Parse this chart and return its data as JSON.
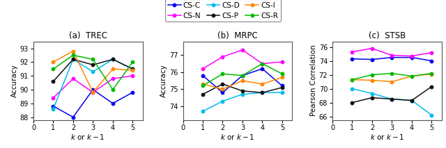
{
  "x": [
    1,
    2,
    3,
    4,
    5
  ],
  "series_order": [
    "CS-C",
    "CS-N",
    "CS-D",
    "CS-P",
    "CS-I",
    "CS-R"
  ],
  "series": {
    "CS-C": {
      "color": "#0000ee"
    },
    "CS-N": {
      "color": "#ff00ff"
    },
    "CS-D": {
      "color": "#00bbee"
    },
    "CS-P": {
      "color": "#111111"
    },
    "CS-I": {
      "color": "#ff8800"
    },
    "CS-R": {
      "color": "#00bb00"
    }
  },
  "trec": {
    "CS-C": [
      88.8,
      88.0,
      90.0,
      89.0,
      89.8
    ],
    "CS-N": [
      89.4,
      90.8,
      89.8,
      90.8,
      91.0
    ],
    "CS-D": [
      88.6,
      92.2,
      91.3,
      92.2,
      91.5
    ],
    "CS-P": [
      90.6,
      92.2,
      91.8,
      92.2,
      91.5
    ],
    "CS-I": [
      92.0,
      92.8,
      89.8,
      91.5,
      91.4
    ],
    "CS-R": [
      91.5,
      92.5,
      92.2,
      90.0,
      92.0
    ]
  },
  "trec_ylim": [
    87.8,
    93.5
  ],
  "trec_yticks": [
    88,
    89,
    90,
    91,
    92,
    93
  ],
  "mrpc": {
    "CS-C": [
      75.8,
      74.8,
      75.8,
      76.2,
      75.2
    ],
    "CS-N": [
      76.2,
      76.9,
      77.3,
      76.5,
      76.6
    ],
    "CS-D": [
      73.7,
      74.3,
      74.7,
      74.8,
      74.8
    ],
    "CS-P": [
      74.7,
      75.3,
      74.9,
      74.8,
      75.1
    ],
    "CS-I": [
      75.3,
      75.0,
      75.5,
      75.3,
      75.7
    ],
    "CS-R": [
      75.2,
      75.9,
      75.8,
      76.5,
      75.9
    ]
  },
  "mrpc_ylim": [
    73.2,
    77.8
  ],
  "mrpc_yticks": [
    74,
    75,
    76,
    77
  ],
  "stsb": {
    "CS-C": [
      74.3,
      74.2,
      74.5,
      74.5,
      74.0
    ],
    "CS-N": [
      75.3,
      75.8,
      74.8,
      74.7,
      75.2
    ],
    "CS-D": [
      70.0,
      69.3,
      68.5,
      68.3,
      66.2
    ],
    "CS-P": [
      68.0,
      68.7,
      68.5,
      68.3,
      70.3
    ],
    "CS-I": [
      71.3,
      71.2,
      71.0,
      71.8,
      72.1
    ],
    "CS-R": [
      71.3,
      72.0,
      72.2,
      71.8,
      72.2
    ]
  },
  "stsb_ylim": [
    65.5,
    76.8
  ],
  "stsb_yticks": [
    66,
    68,
    70,
    72,
    74,
    76
  ],
  "trec_ylabel": "Accuracy",
  "mrpc_ylabel": "Accuracy",
  "stsb_ylabel": "Pearson Correlation",
  "trec_title": "(a)  TREC",
  "mrpc_title": "(b)  MRPC",
  "stsb_title": "(c)  STSB"
}
